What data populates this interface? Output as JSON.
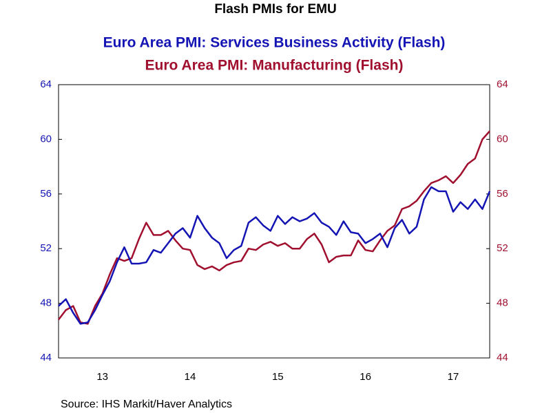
{
  "chart_data": {
    "type": "line",
    "title": "Flash PMIs for EMU",
    "annotations": [
      "Source:  IHS Markit/Haver Analytics"
    ],
    "categories": [
      null,
      null,
      null,
      null,
      null,
      null,
      "13",
      null,
      null,
      null,
      null,
      null,
      null,
      null,
      null,
      null,
      null,
      null,
      "14",
      null,
      null,
      null,
      null,
      null,
      null,
      null,
      null,
      null,
      null,
      null,
      "15",
      null,
      null,
      null,
      null,
      null,
      null,
      null,
      null,
      null,
      null,
      null,
      "16",
      null,
      null,
      null,
      null,
      null,
      null,
      null,
      null,
      null,
      null,
      null,
      "17",
      null,
      null,
      null,
      null,
      null
    ],
    "series": [
      {
        "name": "Euro Area PMI: Services Business Activity (Flash)",
        "color": "#1414b4",
        "axis": "y",
        "values": [
          47.8,
          48.3,
          47.3,
          46.5,
          46.6,
          47.5,
          48.6,
          49.6,
          51.0,
          52.1,
          50.9,
          50.9,
          51.0,
          51.9,
          51.7,
          52.4,
          53.1,
          53.5,
          52.8,
          54.4,
          53.5,
          52.8,
          52.4,
          51.3,
          51.9,
          52.2,
          53.9,
          54.3,
          53.7,
          53.3,
          54.4,
          53.8,
          54.3,
          54.0,
          54.2,
          54.6,
          53.9,
          53.6,
          53.0,
          54.0,
          53.2,
          53.1,
          52.4,
          52.7,
          53.1,
          52.1,
          53.5,
          54.1,
          53.1,
          53.6,
          55.6,
          56.5,
          56.2,
          56.2,
          54.7,
          55.4,
          54.9,
          55.6,
          54.9,
          56.2
        ]
      },
      {
        "name": "Euro Area PMI: Manufacturing (Flash)",
        "color": "#a0102e",
        "axis": "y2",
        "values": [
          46.8,
          47.5,
          47.8,
          46.6,
          46.5,
          47.8,
          48.7,
          50.1,
          51.3,
          51.1,
          51.3,
          52.7,
          53.9,
          53.0,
          53.0,
          53.3,
          52.6,
          52.0,
          51.9,
          50.8,
          50.5,
          50.7,
          50.4,
          50.8,
          51.0,
          51.1,
          52.0,
          51.9,
          52.3,
          52.5,
          52.2,
          52.4,
          52.0,
          52.0,
          52.7,
          53.1,
          52.3,
          51.0,
          51.4,
          51.5,
          51.5,
          52.6,
          51.9,
          51.8,
          52.6,
          53.3,
          53.7,
          54.9,
          55.1,
          55.5,
          56.2,
          56.8,
          57.0,
          57.3,
          56.8,
          57.4,
          58.2,
          58.6,
          60.0,
          60.6
        ]
      }
    ],
    "ylim": [
      44,
      64
    ],
    "yticks": [
      44,
      48,
      52,
      56,
      60,
      64
    ],
    "y2lim": [
      44,
      64
    ],
    "y2ticks": [
      44,
      48,
      52,
      56,
      60,
      64
    ],
    "grid": false
  }
}
